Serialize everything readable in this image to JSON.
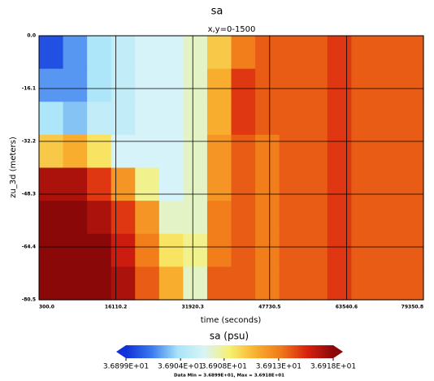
{
  "chart_data": {
    "type": "heatmap",
    "title": "sa",
    "subtitle": "x,y=0-1500",
    "x_label": "time (seconds)",
    "y_label": "zu_3d (meters)",
    "xlim": [
      300,
      79350.8
    ],
    "xticks": [
      {
        "value": 300,
        "label": "300.0"
      },
      16110.2,
      31920.3,
      47730.5,
      63540.6,
      79350.8
    ],
    "ylim": [
      -80.5,
      0
    ],
    "yticks": [
      {
        "value": 0,
        "label": "0.0"
      },
      -16.1,
      -32.2,
      -48.3,
      -64.4,
      -80.5
    ],
    "grid": true,
    "colormap": [
      "#1030d8",
      "#3a7cf0",
      "#a8e4f8",
      "#d8f4f8",
      "#f8f070",
      "#f8b030",
      "#f07818",
      "#d82010",
      "#8a0808"
    ],
    "z": [
      [
        36.9,
        36.902,
        36.904,
        36.905,
        36.906,
        36.906,
        36.907,
        36.91,
        36.913,
        36.914,
        36.914,
        36.914,
        36.915,
        36.914,
        36.914,
        36.914
      ],
      [
        36.902,
        36.902,
        36.904,
        36.905,
        36.906,
        36.906,
        36.907,
        36.911,
        36.915,
        36.914,
        36.914,
        36.914,
        36.915,
        36.914,
        36.914,
        36.914
      ],
      [
        36.904,
        36.903,
        36.905,
        36.905,
        36.906,
        36.906,
        36.907,
        36.911,
        36.915,
        36.914,
        36.914,
        36.914,
        36.915,
        36.914,
        36.914,
        36.914
      ],
      [
        36.91,
        36.911,
        36.909,
        36.906,
        36.906,
        36.906,
        36.907,
        36.912,
        36.914,
        36.913,
        36.914,
        36.914,
        36.915,
        36.914,
        36.914,
        36.914
      ],
      [
        36.917,
        36.917,
        36.915,
        36.912,
        36.908,
        36.906,
        36.907,
        36.912,
        36.914,
        36.913,
        36.914,
        36.914,
        36.915,
        36.914,
        36.914,
        36.914
      ],
      [
        36.918,
        36.918,
        36.917,
        36.915,
        36.912,
        36.907,
        36.907,
        36.913,
        36.914,
        36.913,
        36.914,
        36.914,
        36.915,
        36.914,
        36.914,
        36.914
      ],
      [
        36.918,
        36.918,
        36.918,
        36.916,
        36.913,
        36.909,
        36.908,
        36.913,
        36.914,
        36.913,
        36.914,
        36.914,
        36.915,
        36.914,
        36.914,
        36.914
      ],
      [
        36.918,
        36.918,
        36.918,
        36.917,
        36.914,
        36.911,
        36.907,
        36.914,
        36.914,
        36.913,
        36.914,
        36.914,
        36.915,
        36.914,
        36.914,
        36.914
      ]
    ],
    "colorbar": {
      "title": "sa (psu)",
      "lim": [
        36.899,
        36.918
      ],
      "ticks": [
        {
          "value": 36.899,
          "label": "3.6899E+01"
        },
        {
          "value": 36.904,
          "label": "3.6904E+01"
        },
        {
          "value": 36.908,
          "label": "3.6908E+01"
        },
        {
          "value": 36.913,
          "label": "3.6913E+01"
        },
        {
          "value": 36.918,
          "label": "3.6918E+01"
        }
      ]
    },
    "footer": "Data Min = 3.6899E+01, Max = 3.6918E+01"
  }
}
